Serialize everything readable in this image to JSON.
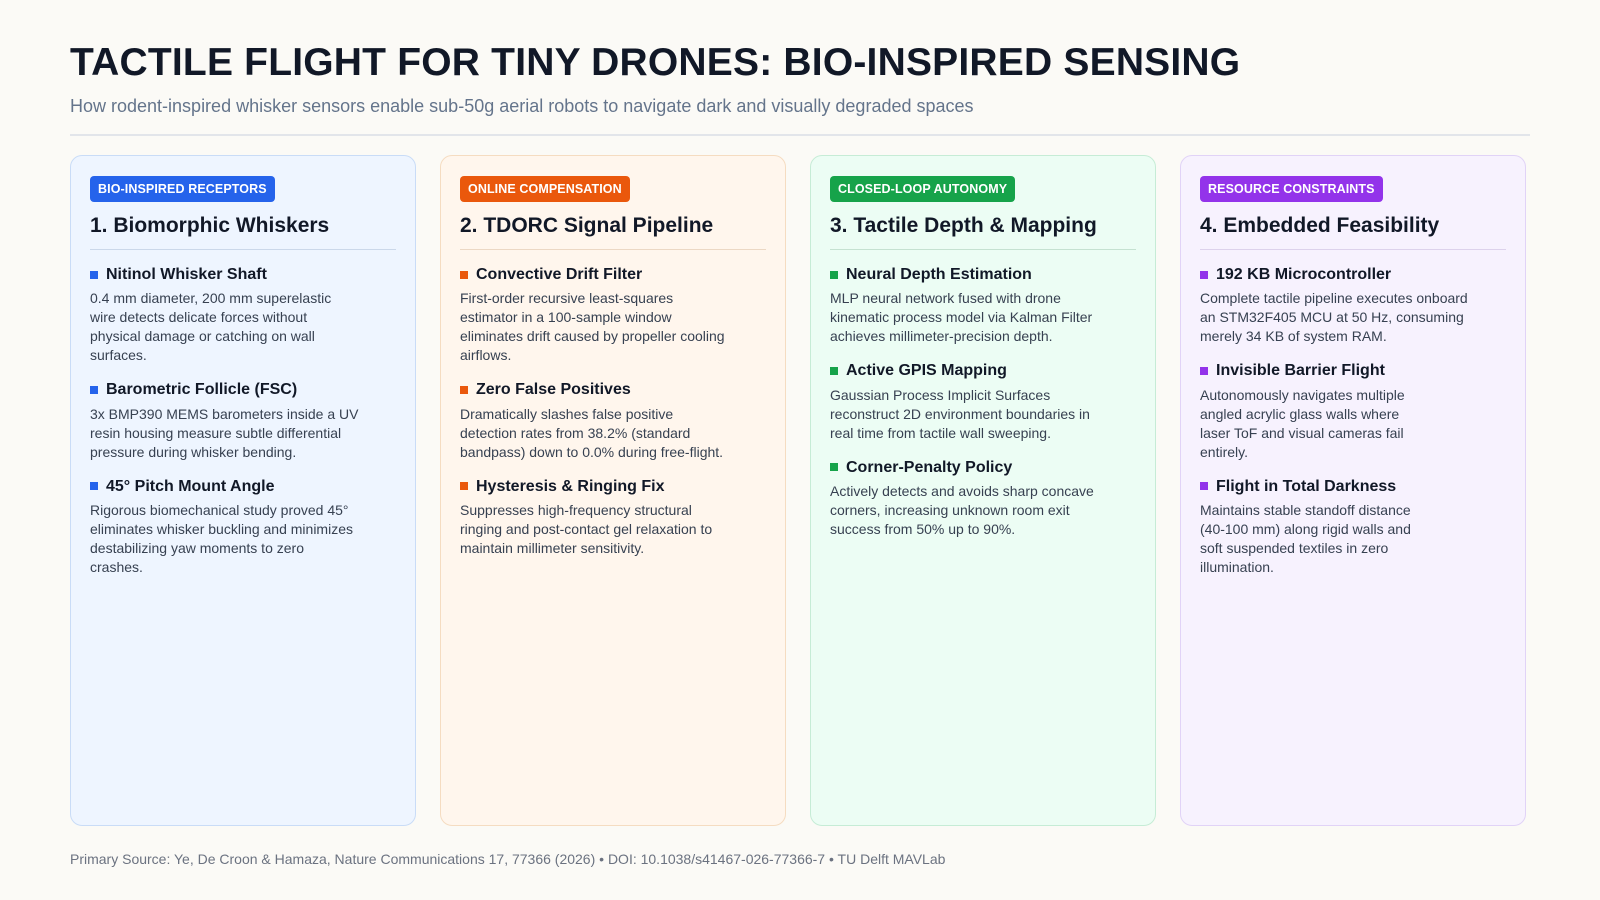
{
  "header": {
    "title": "TACTILE FLIGHT FOR TINY DRONES: BIO-INSPIRED SENSING",
    "subtitle": "How rodent-inspired whisker sensors enable sub-50g aerial robots to navigate dark and visually degraded spaces"
  },
  "colors": {
    "blue": "#2563eb",
    "orange": "#ea580c",
    "green": "#16a34a",
    "purple": "#9333ea"
  },
  "columns": [
    {
      "tag": "BIO-INSPIRED RECEPTORS",
      "title": "1. Biomorphic Whiskers",
      "items": [
        {
          "heading": "Nitinol Whisker Shaft",
          "body": "0.4 mm diameter, 200 mm superelastic wire detects delicate forces without physical damage or catching on wall surfaces."
        },
        {
          "heading": "Barometric Follicle (FSC)",
          "body": "3x BMP390 MEMS barometers inside a UV resin housing measure subtle differential pressure during whisker bending."
        },
        {
          "heading": "45° Pitch Mount Angle",
          "body": "Rigorous biomechanical study proved 45° eliminates whisker buckling and minimizes destabilizing yaw moments to zero crashes."
        }
      ]
    },
    {
      "tag": "ONLINE COMPENSATION",
      "title": "2. TDORC Signal Pipeline",
      "items": [
        {
          "heading": "Convective Drift Filter",
          "body": "First-order recursive least-squares estimator in a 100-sample window eliminates drift caused by propeller cooling airflows."
        },
        {
          "heading": "Zero False Positives",
          "body": "Dramatically slashes false positive detection rates from 38.2% (standard bandpass) down to 0.0% during free-flight."
        },
        {
          "heading": "Hysteresis & Ringing Fix",
          "body": "Suppresses high-frequency structural ringing and post-contact gel relaxation to maintain millimeter sensitivity."
        }
      ]
    },
    {
      "tag": "CLOSED-LOOP AUTONOMY",
      "title": "3. Tactile Depth & Mapping",
      "items": [
        {
          "heading": "Neural Depth Estimation",
          "body": "MLP neural network fused with drone kinematic process model via Kalman Filter achieves millimeter-precision depth."
        },
        {
          "heading": "Active GPIS Mapping",
          "body": "Gaussian Process Implicit Surfaces reconstruct 2D environment boundaries in real time from tactile wall sweeping."
        },
        {
          "heading": "Corner-Penalty Policy",
          "body": "Actively detects and avoids sharp concave corners, increasing unknown room exit success from 50% up to 90%."
        }
      ]
    },
    {
      "tag": "RESOURCE CONSTRAINTS",
      "title": "4. Embedded Feasibility",
      "items": [
        {
          "heading": "192 KB Microcontroller",
          "body": "Complete tactile pipeline executes onboard an STM32F405 MCU at 50 Hz, consuming merely 34 KB of system RAM."
        },
        {
          "heading": "Invisible Barrier Flight",
          "body": "Autonomously navigates multiple angled acrylic glass walls where laser ToF and visual cameras fail entirely."
        },
        {
          "heading": "Flight in Total Darkness",
          "body": "Maintains stable standoff distance (40-100 mm) along rigid walls and soft suspended textiles in zero illumination."
        }
      ]
    }
  ],
  "footer": {
    "source": "Primary Source: Ye, De Croon & Hamaza, Nature Communications 17, 77366 (2026) • DOI: 10.1038/s41467-026-77366-7 • TU Delft MAVLab"
  }
}
